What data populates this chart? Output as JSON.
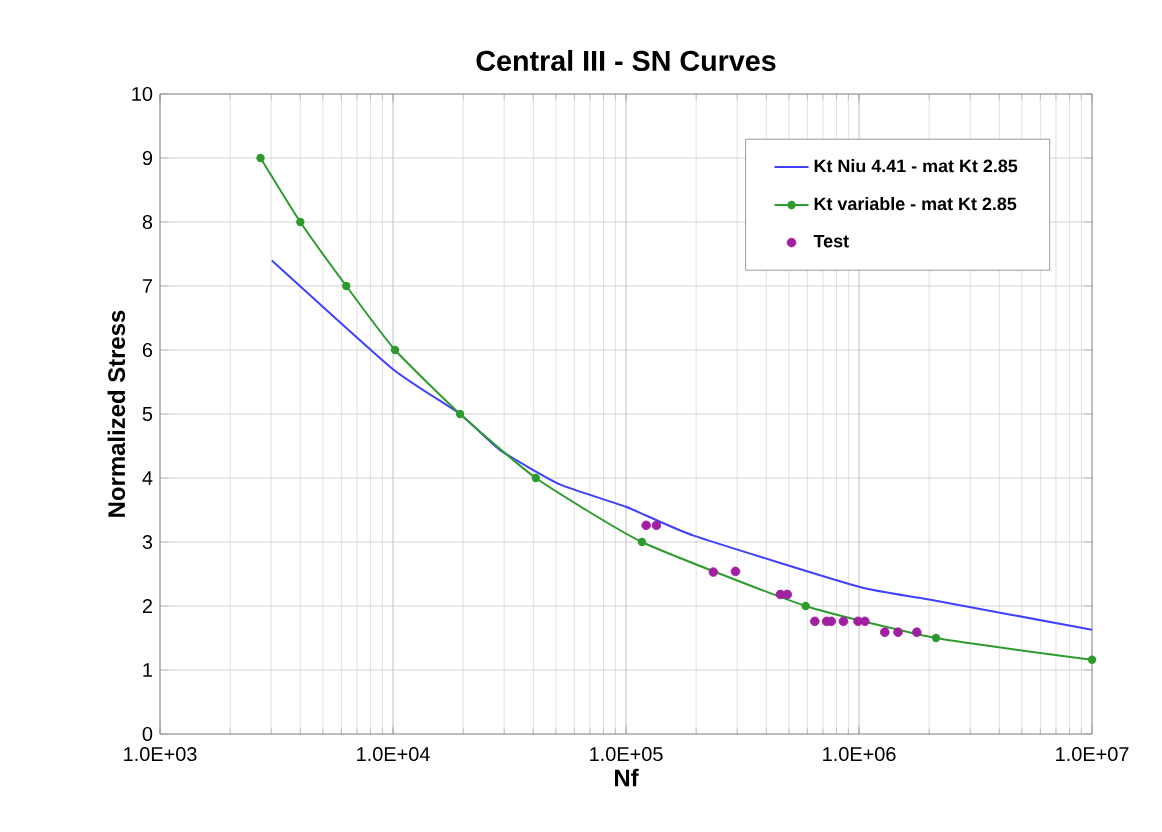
{
  "chart_data": {
    "type": "line",
    "title": "Central III - SN Curves",
    "xlabel": "Nf",
    "ylabel": "Normalized Stress",
    "log": "x",
    "grid": true,
    "legend": "top right",
    "xlim": [
      1000,
      10000000
    ],
    "ylim": [
      0,
      10
    ],
    "xticks": [
      {
        "value": 1000,
        "label": "1.0E+03"
      },
      {
        "value": 10000,
        "label": "1.0E+04"
      },
      {
        "value": 100000,
        "label": "1.0E+05"
      },
      {
        "value": 1000000,
        "label": "1.0E+06"
      },
      {
        "value": 10000000,
        "label": "1.0E+07"
      }
    ],
    "yticks": [
      0,
      1,
      2,
      3,
      4,
      5,
      6,
      7,
      8,
      9,
      10
    ],
    "series": [
      {
        "name": "Kt Niu 4.41 - mat Kt 2.85",
        "marker": "none",
        "color": "#4040ff",
        "x": [
          3020,
          10000,
          19400,
          28700,
          52000,
          100000,
          195000,
          1000000,
          2000000,
          10000000
        ],
        "values": [
          7.4,
          5.7,
          5.0,
          4.44,
          3.9,
          3.55,
          3.1,
          2.3,
          2.1,
          1.63
        ]
      },
      {
        "name": "Kt variable - mat Kt 2.85",
        "marker": "circle",
        "color": "#2e9b2e",
        "x": [
          2700,
          4000,
          6300,
          10200,
          19400,
          41000,
          117000,
          590000,
          2140000,
          10000000
        ],
        "values": [
          9,
          8,
          7,
          6,
          5,
          4,
          3,
          2,
          1.5,
          1.16
        ]
      },
      {
        "name": "Test",
        "type": "scatter",
        "marker": "circle",
        "color": "#a020a0",
        "x": [
          122000,
          135000,
          237000,
          295000,
          460000,
          492000,
          646000,
          726000,
          760000,
          857000,
          990000,
          1060000,
          1290000,
          1470000,
          1770000
        ],
        "values": [
          3.26,
          3.26,
          2.53,
          2.54,
          2.18,
          2.18,
          1.76,
          1.76,
          1.76,
          1.76,
          1.76,
          1.76,
          1.59,
          1.59,
          1.59
        ]
      }
    ]
  }
}
